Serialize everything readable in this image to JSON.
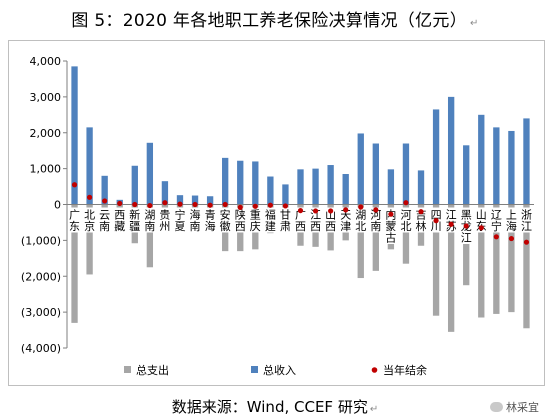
{
  "title": "图 5：2020 年各地职工养老保险决算情况（亿元）",
  "title_mark": "↵",
  "source": "数据来源：Wind, CCEF 研究",
  "source_mark": "↵",
  "watermark": "林采宜",
  "colors": {
    "income": "#4f81bd",
    "expense": "#a6a6a6",
    "balance": "#c00000",
    "frame": "#bfbfbf"
  },
  "chart_data": {
    "type": "bar",
    "categories": [
      "广东",
      "北京",
      "云南",
      "西藏",
      "新疆",
      "湖南",
      "贵州",
      "宁夏",
      "海南",
      "青海",
      "安徽",
      "陕西",
      "重庆",
      "福建",
      "甘肃",
      "广西",
      "江西",
      "山西",
      "天津",
      "湖北",
      "河南",
      "内蒙古",
      "河北",
      "吉林",
      "四川",
      "江苏",
      "黑龙江",
      "山东",
      "辽宁",
      "上海",
      "浙江"
    ],
    "category_lines": [
      [
        "广",
        "东"
      ],
      [
        "北",
        "京"
      ],
      [
        "云",
        "南"
      ],
      [
        "西",
        "藏"
      ],
      [
        "新",
        "疆"
      ],
      [
        "湖",
        "南"
      ],
      [
        "贵",
        "州"
      ],
      [
        "宁",
        "夏"
      ],
      [
        "海",
        "南"
      ],
      [
        "青",
        "海"
      ],
      [
        "安",
        "徽"
      ],
      [
        "陕",
        "西"
      ],
      [
        "重",
        "庆"
      ],
      [
        "福",
        "建"
      ],
      [
        "甘",
        "肃"
      ],
      [
        "广",
        "西"
      ],
      [
        "江",
        "西"
      ],
      [
        "山",
        "西"
      ],
      [
        "天",
        "津"
      ],
      [
        "湖",
        "北"
      ],
      [
        "河",
        "南"
      ],
      [
        "内",
        "蒙",
        "古"
      ],
      [
        "河",
        "北"
      ],
      [
        "吉",
        "林"
      ],
      [
        "四",
        "川"
      ],
      [
        "江",
        "苏"
      ],
      [
        "黑",
        "龙",
        "江"
      ],
      [
        "山",
        "东"
      ],
      [
        "辽",
        "宁"
      ],
      [
        "上",
        "海"
      ],
      [
        "浙",
        "江"
      ]
    ],
    "series": [
      {
        "name": "总支出",
        "values": [
          -3300,
          -1950,
          -700,
          -100,
          -1080,
          -1750,
          -600,
          -250,
          -250,
          -250,
          -1300,
          -1300,
          -1250,
          -800,
          -600,
          -1150,
          -1180,
          -1280,
          -1000,
          -2050,
          -1850,
          -1250,
          -1650,
          -1150,
          -3100,
          -3550,
          -2250,
          -3150,
          -3050,
          -3000,
          -3450
        ]
      },
      {
        "name": "总收入",
        "values": [
          3850,
          2150,
          800,
          130,
          1080,
          1720,
          650,
          260,
          250,
          230,
          1300,
          1220,
          1200,
          780,
          560,
          980,
          1000,
          1100,
          850,
          1980,
          1700,
          980,
          1700,
          950,
          2650,
          3000,
          1650,
          2500,
          2150,
          2050,
          2400
        ]
      },
      {
        "name": "当年结余",
        "values": [
          550,
          200,
          100,
          30,
          0,
          -30,
          50,
          10,
          0,
          -20,
          0,
          -80,
          -50,
          -20,
          -40,
          -170,
          -180,
          -180,
          -150,
          -70,
          -150,
          -270,
          50,
          -200,
          -450,
          -550,
          -600,
          -650,
          -900,
          -950,
          -1050
        ]
      }
    ],
    "legend": [
      "总支出",
      "总收入",
      "当年结余"
    ],
    "legend_position": "bottom",
    "yticks": [
      "4,000",
      "3,000",
      "2,000",
      "1,000",
      "0",
      "(1,000)",
      "(2,000)",
      "(3,000)",
      "(4,000)"
    ],
    "ylim": [
      -4000,
      4000
    ],
    "grid": false,
    "xlabel": "",
    "ylabel": ""
  }
}
